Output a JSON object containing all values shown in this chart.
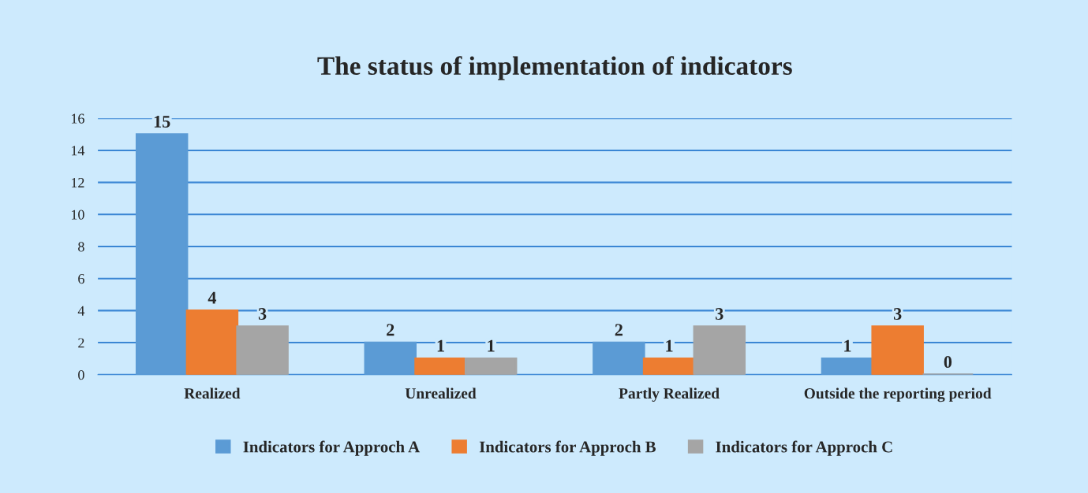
{
  "chart_data": {
    "type": "bar",
    "title": "The status of implementation of indicators",
    "categories": [
      "Realized",
      "Unrealized",
      "Partly Realized",
      "Outside the reporting period"
    ],
    "series": [
      {
        "name": "Indicators for Approch A",
        "color": "#5b9bd5",
        "values": [
          15,
          2,
          2,
          1
        ]
      },
      {
        "name": "Indicators for Approch B",
        "color": "#ed7d31",
        "values": [
          4,
          1,
          1,
          3
        ]
      },
      {
        "name": "Indicators for Approch C",
        "color": "#a5a5a5",
        "values": [
          3,
          1,
          3,
          0
        ]
      }
    ],
    "ylim": [
      0,
      16
    ],
    "yticks": [
      0,
      2,
      4,
      6,
      8,
      10,
      12,
      14,
      16
    ],
    "grid": "y",
    "legend": "bottom",
    "data_labels": true
  }
}
